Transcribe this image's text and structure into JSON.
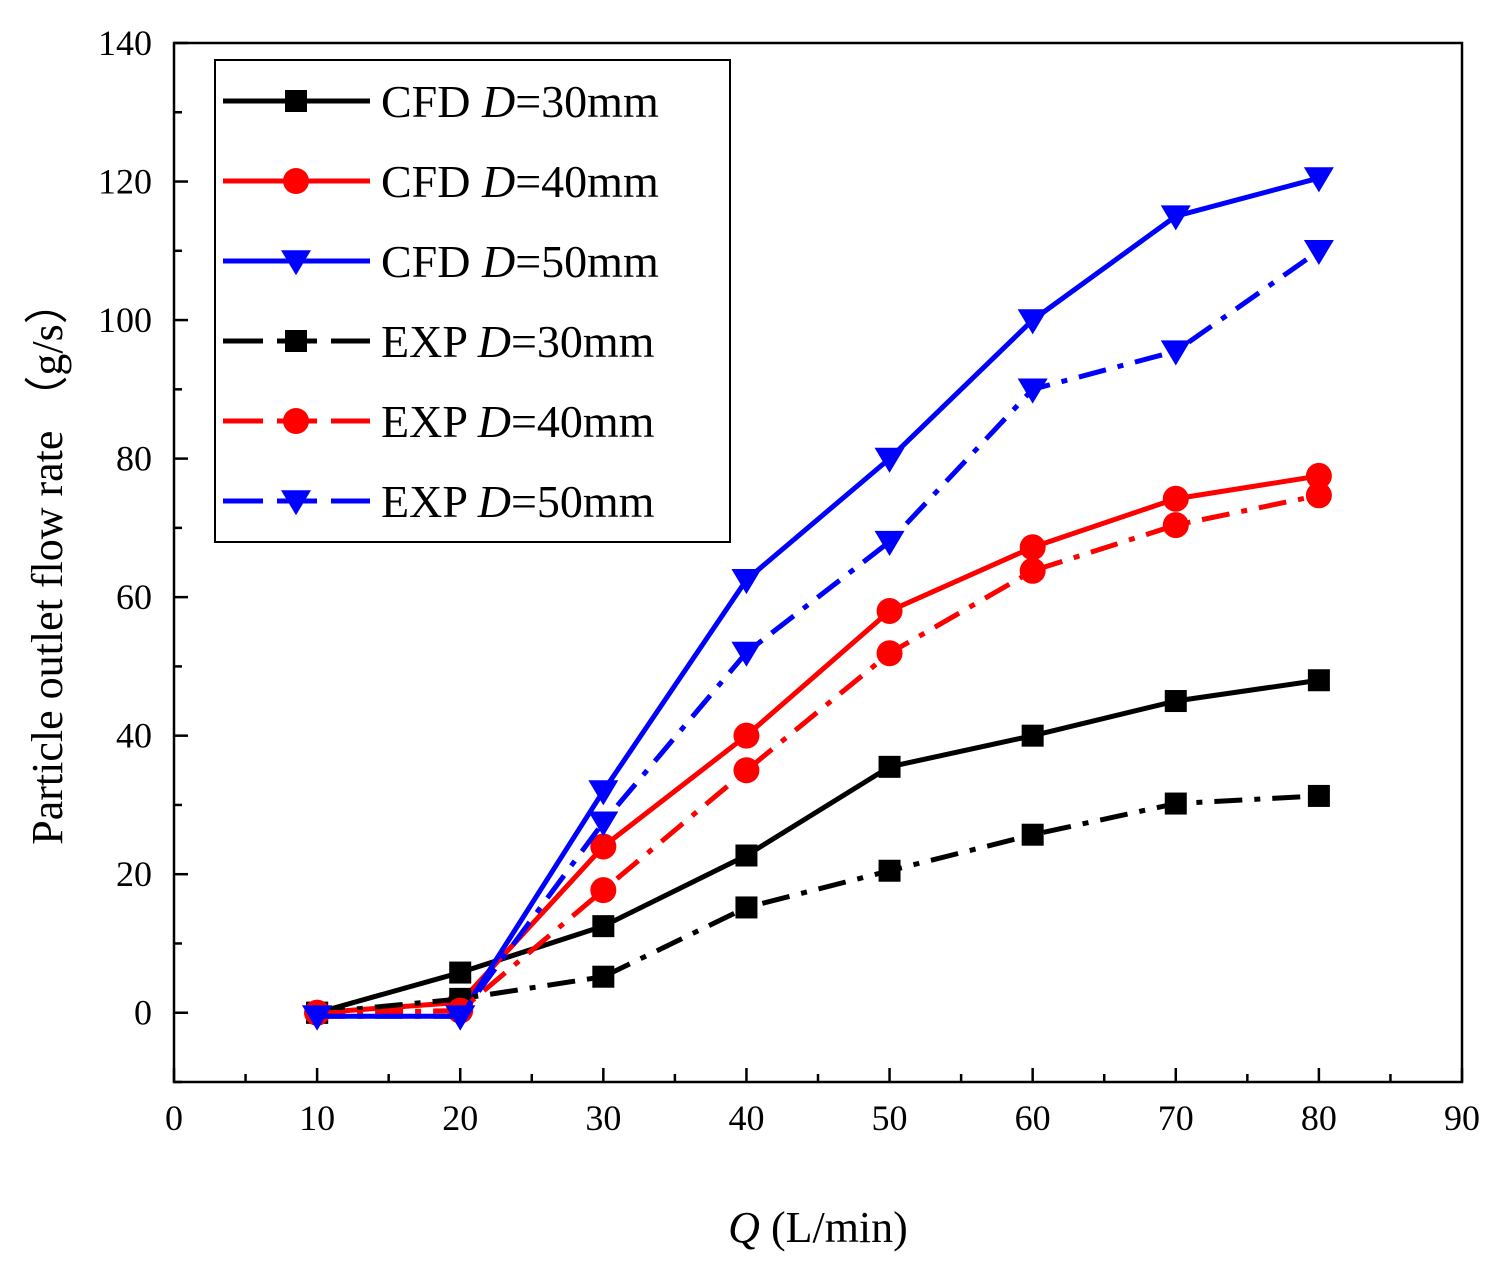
{
  "chart_data": {
    "type": "line",
    "title": "",
    "xlabel_var": "Q",
    "xlabel_unit": " (L/min)",
    "ylabel": "Particle outlet flow rate （g/s）",
    "xlim": [
      0,
      90
    ],
    "ylim": [
      -10,
      140
    ],
    "xticks": [
      0,
      10,
      20,
      30,
      40,
      50,
      60,
      70,
      80,
      90
    ],
    "yticks": [
      0,
      20,
      40,
      60,
      80,
      100,
      120,
      140
    ],
    "x": [
      10,
      20,
      30,
      40,
      50,
      60,
      70,
      80
    ],
    "legend_position": "top-left",
    "grid": false,
    "series": [
      {
        "name": "CFD D=30mm",
        "prefix": "CFD ",
        "var": "D",
        "suffix": "=30mm",
        "color": "#000000",
        "marker": "square",
        "dash": "solid",
        "values": [
          0,
          5.8,
          12.5,
          22.7,
          35.5,
          40,
          45,
          48
        ]
      },
      {
        "name": "CFD D=40mm",
        "prefix": "CFD ",
        "var": "D",
        "suffix": "=40mm",
        "color": "#ff0000",
        "marker": "circle",
        "dash": "solid",
        "values": [
          0,
          1.5,
          24,
          40,
          58,
          67.2,
          74.2,
          77.5
        ]
      },
      {
        "name": "CFD D=50mm",
        "prefix": "CFD ",
        "var": "D",
        "suffix": "=50mm",
        "color": "#0000ff",
        "marker": "triangle-down",
        "dash": "solid",
        "values": [
          -0.5,
          -0.5,
          32,
          62.5,
          80,
          100,
          115,
          120.5
        ]
      },
      {
        "name": "EXP D=30mm",
        "prefix": "EXP ",
        "var": "D",
        "suffix": "=30mm",
        "color": "#000000",
        "marker": "square",
        "dash": "dashdot",
        "values": [
          0,
          2,
          5.2,
          15.2,
          20.5,
          25.7,
          30.2,
          31.3
        ]
      },
      {
        "name": "EXP D=40mm",
        "prefix": "EXP ",
        "var": "D",
        "suffix": "=40mm",
        "color": "#ff0000",
        "marker": "circle",
        "dash": "dashdot",
        "values": [
          0,
          0.3,
          17.7,
          35,
          51.9,
          63.8,
          70.4,
          74.7
        ]
      },
      {
        "name": "EXP D=50mm",
        "prefix": "EXP ",
        "var": "D",
        "suffix": "=50mm",
        "color": "#0000ff",
        "marker": "triangle-down",
        "dash": "dashdot",
        "values": [
          -0.5,
          -0.5,
          27.5,
          52,
          68,
          90,
          95.5,
          110
        ]
      }
    ]
  }
}
